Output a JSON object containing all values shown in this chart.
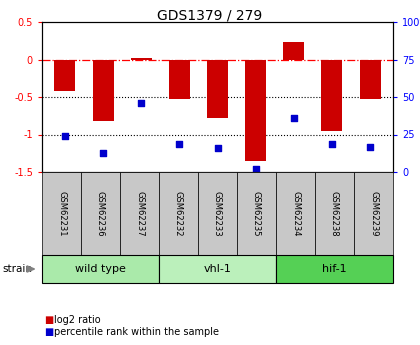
{
  "title": "GDS1379 / 279",
  "samples": [
    "GSM62231",
    "GSM62236",
    "GSM62237",
    "GSM62232",
    "GSM62233",
    "GSM62235",
    "GSM62234",
    "GSM62238",
    "GSM62239"
  ],
  "log2_ratio": [
    -0.42,
    -0.82,
    0.02,
    -0.52,
    -0.78,
    -1.35,
    0.23,
    -0.95,
    -0.52
  ],
  "percentile_rank": [
    24,
    13,
    46,
    19,
    16,
    2,
    36,
    19,
    17
  ],
  "groups": [
    {
      "label": "wild type",
      "indices": [
        0,
        1,
        2
      ],
      "color": "#aaeaaa"
    },
    {
      "label": "vhl-1",
      "indices": [
        3,
        4,
        5
      ],
      "color": "#bbf0bb"
    },
    {
      "label": "hif-1",
      "indices": [
        6,
        7,
        8
      ],
      "color": "#55d055"
    }
  ],
  "ylim_left": [
    -1.5,
    0.5
  ],
  "ylim_right": [
    0,
    100
  ],
  "bar_color": "#cc0000",
  "dot_color": "#0000cc",
  "dotted_lines": [
    -0.5,
    -1.0
  ],
  "background_color": "#ffffff",
  "sample_box_color": "#c8c8c8",
  "legend_bar_label": "log2 ratio",
  "legend_dot_label": "percentile rank within the sample",
  "left_yticks": [
    0.5,
    0,
    -0.5,
    -1.0,
    -1.5
  ],
  "left_yticklabels": [
    "0.5",
    "0",
    "-0.5",
    "-1",
    "-1.5"
  ],
  "right_yticks": [
    0,
    25,
    50,
    75,
    100
  ],
  "right_yticklabels": [
    "0",
    "25",
    "50",
    "75",
    "100%"
  ]
}
